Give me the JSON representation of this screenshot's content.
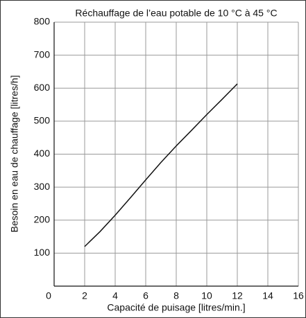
{
  "chart_data": {
    "type": "line",
    "title": "Réchauffage de l’eau potable de 10 °C à 45 °C",
    "x_label": "Capacité de puisage [litres/min.]",
    "y_label": "Besoin en eau de chauffage [litres/h]",
    "x": [
      2,
      3,
      4,
      5,
      6,
      7,
      8,
      9,
      10,
      11,
      12
    ],
    "series": [
      {
        "name": null,
        "color": "#111111",
        "values": [
          120,
          165,
          215,
          268,
          322,
          375,
          425,
          472,
          520,
          566,
          613
        ]
      }
    ],
    "xlim": [
      0,
      16
    ],
    "xticks": [
      0,
      2,
      4,
      6,
      8,
      10,
      12,
      14,
      16
    ],
    "ylim": [
      0,
      800
    ],
    "yticks": [
      100,
      200,
      300,
      400,
      500,
      600,
      700,
      800
    ],
    "grid": true
  }
}
